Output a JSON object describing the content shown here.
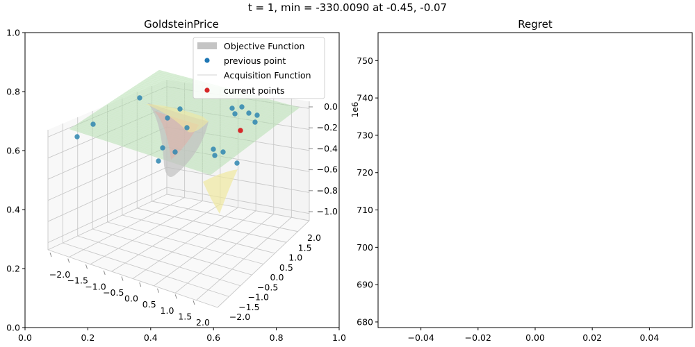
{
  "suptitle": "t = 1, min = -330.0090 at -0.45, -0.07",
  "chart_data": [
    {
      "type": "surface3d",
      "title": "GoldsteinPrice",
      "frame_axes": {
        "xlim": [
          0,
          1
        ],
        "ylim": [
          0,
          1
        ],
        "xticks": [
          "0.0",
          "0.2",
          "0.4",
          "0.6",
          "0.8",
          "1.0"
        ],
        "yticks": [
          "0.0",
          "0.2",
          "0.4",
          "0.6",
          "0.8",
          "1.0"
        ]
      },
      "axis3d": {
        "x_ticks": [
          "−2.0",
          "−1.5",
          "−1.0",
          "−0.5",
          "0.0",
          "0.5",
          "1.0",
          "1.5",
          "2.0"
        ],
        "y_ticks": [
          "−2.0",
          "−1.5",
          "−1.0",
          "−0.5",
          "0.0",
          "0.5",
          "1.0",
          "1.5",
          "2.0"
        ],
        "z_ticks": [
          "0.0",
          "−0.2",
          "−0.4",
          "−0.6",
          "−0.8",
          "−1.0"
        ],
        "grid": true
      },
      "legend": {
        "placement": "top-right",
        "entries": [
          {
            "label": "Objective Function",
            "kind": "patch",
            "color": "#c4c4c4"
          },
          {
            "label": "previous point",
            "kind": "marker",
            "color": "#1f77b4"
          },
          {
            "label": "Acquisition Function",
            "kind": "line",
            "color": "#e8e8e8"
          },
          {
            "label": "current points",
            "kind": "marker",
            "color": "#d62728"
          }
        ]
      },
      "colors": {
        "previous": "#2f86b0",
        "current": "#d62728",
        "acquisition_surface": "#a9d9a3",
        "objective_surface": "#c0c0c0",
        "valley": "#f0e8a0"
      }
    },
    {
      "type": "line",
      "title": "Regret",
      "offset_label": "1e6",
      "xlim": [
        -0.055,
        0.055
      ],
      "ylim": [
        678.5,
        757.5
      ],
      "xticks": [
        "−0.04",
        "−0.02",
        "0.00",
        "0.02",
        "0.04"
      ],
      "xtick_values": [
        -0.04,
        -0.02,
        0,
        0.02,
        0.04
      ],
      "yticks": [
        "680",
        "690",
        "700",
        "710",
        "720",
        "730",
        "740",
        "750"
      ],
      "ytick_values": [
        680,
        690,
        700,
        710,
        720,
        730,
        740,
        750
      ],
      "series": []
    }
  ]
}
